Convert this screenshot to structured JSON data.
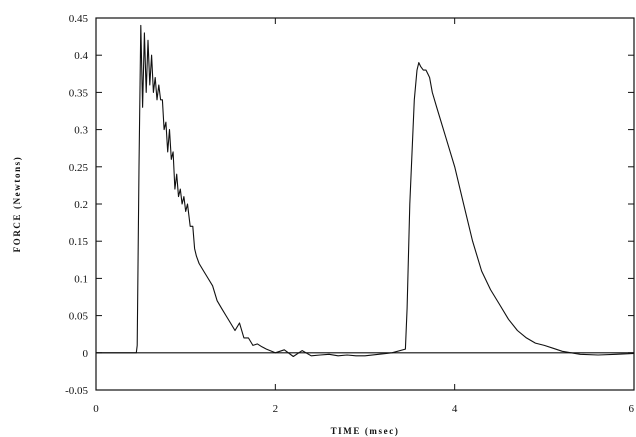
{
  "chart_data": {
    "type": "line",
    "title": "",
    "xlabel": "TIME (msec)",
    "ylabel": "FORCE (Newtons)",
    "xlim": [
      0,
      6
    ],
    "ylim": [
      -0.05,
      0.45
    ],
    "x_ticks": [
      "0",
      "2",
      "4",
      "6"
    ],
    "y_ticks": [
      "-0.05",
      "0",
      "0.05",
      "0.1",
      "0.15",
      "0.2",
      "0.25",
      "0.3",
      "0.35",
      "0.4",
      "0.45"
    ],
    "grid": false,
    "legend": "none",
    "line_color": "#111111",
    "series": [
      {
        "x": [
          0,
          0.45,
          0.46,
          0.48,
          0.5,
          0.52,
          0.54,
          0.56,
          0.58,
          0.6,
          0.62,
          0.64,
          0.66,
          0.68,
          0.7,
          0.72,
          0.74,
          0.76,
          0.78,
          0.8,
          0.82,
          0.84,
          0.86,
          0.88,
          0.9,
          0.92,
          0.94,
          0.96,
          0.98,
          1.0,
          1.02,
          1.05,
          1.08,
          1.1,
          1.12,
          1.15,
          1.2,
          1.25,
          1.3,
          1.35,
          1.4,
          1.45,
          1.5,
          1.55,
          1.6,
          1.65,
          1.7,
          1.75,
          1.8,
          1.85,
          1.9,
          2.0,
          2.1,
          2.2,
          2.3,
          2.4,
          2.5,
          2.6,
          2.7,
          2.8,
          2.9,
          3.0,
          3.3,
          3.45,
          3.47,
          3.5,
          3.55,
          3.58,
          3.6,
          3.62,
          3.65,
          3.68,
          3.7,
          3.72,
          3.75,
          3.8,
          3.9,
          4.0,
          4.1,
          4.2,
          4.3,
          4.4,
          4.5,
          4.6,
          4.7,
          4.8,
          4.9,
          5.0,
          5.1,
          5.2,
          5.3,
          5.4,
          5.6,
          5.8,
          6.0
        ],
        "y": [
          0,
          0,
          0.01,
          0.25,
          0.44,
          0.33,
          0.43,
          0.35,
          0.42,
          0.36,
          0.4,
          0.35,
          0.37,
          0.34,
          0.36,
          0.34,
          0.34,
          0.3,
          0.31,
          0.27,
          0.3,
          0.26,
          0.27,
          0.22,
          0.24,
          0.21,
          0.22,
          0.2,
          0.21,
          0.19,
          0.2,
          0.17,
          0.17,
          0.14,
          0.13,
          0.12,
          0.11,
          0.1,
          0.09,
          0.07,
          0.06,
          0.05,
          0.04,
          0.03,
          0.04,
          0.02,
          0.02,
          0.01,
          0.012,
          0.008,
          0.005,
          0.0,
          0.004,
          -0.005,
          0.003,
          -0.004,
          -0.003,
          -0.002,
          -0.004,
          -0.003,
          -0.004,
          -0.004,
          0,
          0.005,
          0.06,
          0.2,
          0.34,
          0.38,
          0.39,
          0.385,
          0.38,
          0.38,
          0.375,
          0.37,
          0.35,
          0.33,
          0.29,
          0.25,
          0.2,
          0.15,
          0.11,
          0.085,
          0.065,
          0.045,
          0.03,
          0.02,
          0.013,
          0.01,
          0.006,
          0.002,
          0.0,
          -0.002,
          -0.003,
          -0.002,
          -0.001
        ]
      }
    ]
  }
}
